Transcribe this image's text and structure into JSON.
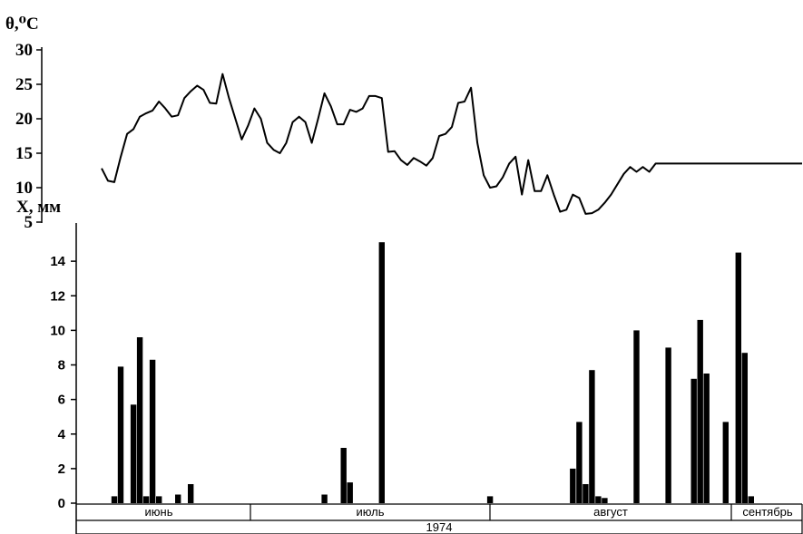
{
  "chart_data": [
    {
      "type": "line",
      "ylabel": "θ,⁰C",
      "ylim": [
        5,
        30
      ],
      "yticks": [
        5,
        10,
        15,
        20,
        25,
        30
      ],
      "xlim": [
        0,
        110
      ],
      "series": [
        {
          "x": [
            0,
            1,
            2,
            3,
            4,
            5,
            6,
            7,
            8,
            9,
            10,
            11,
            12,
            13,
            14,
            15,
            16,
            17,
            18,
            19,
            20,
            21,
            22,
            23,
            24,
            25,
            26,
            27,
            28,
            29,
            30,
            31,
            32,
            33,
            34,
            35,
            36,
            37,
            38,
            39,
            40,
            41,
            42,
            43,
            44,
            45,
            46,
            47,
            48,
            49,
            50,
            51,
            52,
            53,
            54,
            55,
            56,
            57,
            58,
            59,
            60,
            61,
            62,
            63,
            64,
            65,
            66,
            67,
            68,
            69,
            70,
            71,
            72,
            73,
            74,
            75,
            76,
            77,
            78,
            79,
            80,
            81,
            82,
            83,
            84,
            85,
            86,
            87,
            88,
            89,
            90,
            91,
            92,
            93,
            94,
            95,
            96,
            97,
            98,
            99,
            100,
            101,
            102,
            103,
            104,
            105,
            106,
            107,
            108,
            109,
            110
          ],
          "values": [
            12.8,
            11,
            10.8,
            14.5,
            17.8,
            18.5,
            20.3,
            20.8,
            21.2,
            22.5,
            21.5,
            20.3,
            20.5,
            23,
            24,
            24.8,
            24.2,
            22.3,
            22.2,
            26.5,
            23,
            20,
            17,
            19,
            21.5,
            20,
            16.5,
            15.5,
            15,
            16.5,
            19.5,
            20.3,
            19.5,
            16.5,
            20,
            23.7,
            21.8,
            19.2,
            19.2,
            21.3,
            21,
            21.5,
            23.3,
            23.3,
            23,
            15.2,
            15.3,
            14,
            13.3,
            14.3,
            13.8,
            13.2,
            14.3,
            17.5,
            17.8,
            18.8,
            22.3,
            22.5,
            24.5,
            16.5,
            11.8,
            10,
            10.2,
            11.5,
            13.5,
            14.5,
            9,
            14,
            9.5,
            9.5,
            11.8,
            9,
            6.5,
            6.8,
            9,
            8.5,
            6.2,
            6.3,
            6.8,
            7.8,
            9,
            10.5,
            12,
            13,
            12.3,
            13,
            12.3,
            13.5,
            13.5,
            13.5,
            13.5,
            13.5,
            13.5,
            13.5,
            13.5,
            13.5,
            13.5,
            13.5,
            13.5,
            13.5,
            13.5,
            13.5,
            13.5,
            13.5,
            13.5,
            13.5,
            13.5,
            13.5,
            13.5,
            13.5,
            13.5
          ]
        }
      ]
    },
    {
      "type": "bar",
      "ylabel": "X, мм",
      "ylim": [
        0,
        15
      ],
      "yticks": [
        0,
        2,
        4,
        6,
        8,
        10,
        12,
        14
      ],
      "xlim": [
        0,
        110
      ],
      "values_x": [
        2,
        3,
        5,
        6,
        7,
        8,
        9,
        12,
        14,
        35,
        38,
        39,
        44,
        61,
        74,
        75,
        76,
        77,
        78,
        79,
        84,
        89,
        93,
        94,
        95,
        98,
        100,
        101,
        102
      ],
      "values": [
        0.4,
        7.9,
        5.7,
        9.6,
        0.4,
        8.3,
        0.4,
        0.5,
        1.1,
        0.5,
        3.2,
        1.2,
        15.1,
        0.4,
        2,
        4.7,
        1.1,
        7.7,
        0.4,
        0.3,
        10,
        9,
        7.2,
        10.6,
        7.5,
        4.7,
        14.5,
        8.7,
        0.4
      ],
      "months": [
        "июнь",
        "июль",
        "август",
        "сентябрь"
      ],
      "year": "1974"
    }
  ]
}
